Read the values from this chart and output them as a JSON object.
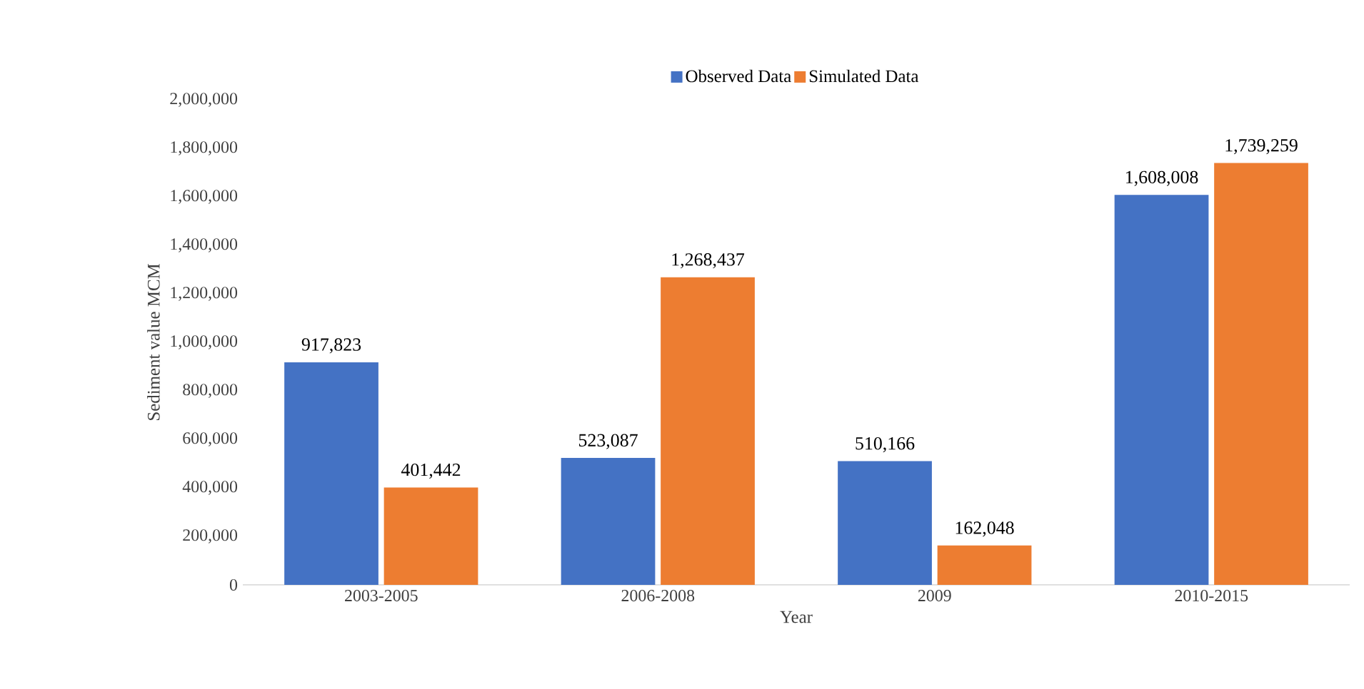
{
  "chart_data": {
    "type": "bar",
    "xlabel": "Year",
    "ylabel": "Sediment value MCM",
    "categories": [
      "2003-2005",
      "2006-2008",
      "2009",
      "2010-2015"
    ],
    "series": [
      {
        "name": "Observed Data",
        "color": "#4472c4",
        "values": [
          917823,
          523087,
          510166,
          1608008
        ],
        "value_labels": [
          "917,823",
          "523,087",
          "510,166",
          "1,608,008"
        ]
      },
      {
        "name": "Simulated Data",
        "color": "#ed7d31",
        "values": [
          401442,
          1268437,
          162048,
          1739259
        ],
        "value_labels": [
          "401,442",
          "1,268,437",
          "162,048",
          "1,739,259"
        ]
      }
    ],
    "ylim": [
      0,
      2000000
    ],
    "yticks": [
      0,
      {
        "value": 200000,
        "label": "200,000"
      },
      {
        "value": 400000,
        "label": "400,000"
      },
      {
        "value": 600000,
        "label": "600,000"
      },
      {
        "value": 800000,
        "label": "800,000"
      },
      {
        "value": 1000000,
        "label": "1,000,000"
      },
      {
        "value": 1200000,
        "label": "1,200,000"
      },
      {
        "value": 1400000,
        "label": "1,400,000"
      },
      {
        "value": 1600000,
        "label": "1,600,000"
      },
      {
        "value": 1800000,
        "label": "1,800,000"
      },
      {
        "value": 2000000,
        "label": "2,000,000"
      }
    ],
    "legend": "top"
  }
}
